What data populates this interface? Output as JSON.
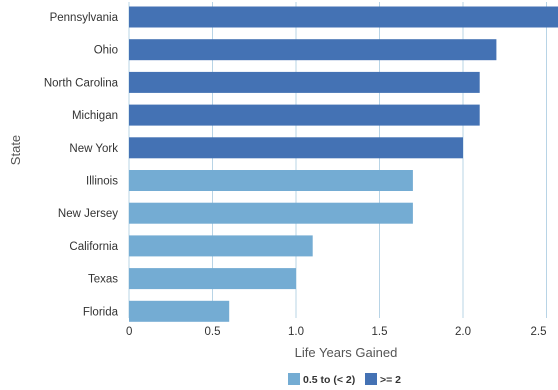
{
  "chart_data": {
    "type": "bar",
    "orientation": "horizontal",
    "categories": [
      "Pennsylvania",
      "Ohio",
      "North Carolina",
      "Michigan",
      "New York",
      "Illinois",
      "New Jersey",
      "California",
      "Texas",
      "Florida"
    ],
    "values": [
      2.6,
      2.2,
      2.1,
      2.1,
      2.0,
      1.7,
      1.7,
      1.1,
      1.0,
      0.6
    ],
    "groups": [
      "high",
      "high",
      "high",
      "high",
      "high",
      "low",
      "low",
      "low",
      "low",
      "low"
    ],
    "legend": [
      {
        "key": "low",
        "label": "0.5 to (< 2)",
        "color": "#74acd3"
      },
      {
        "key": "high",
        "label": ">= 2",
        "color": "#4472b4"
      }
    ],
    "xlabel": "Life Years Gained",
    "ylabel": "State",
    "xticks": [
      0,
      0.5,
      1.0,
      1.5,
      2.0,
      2.5
    ],
    "xtick_labels": [
      "0",
      "0.5",
      "1.0",
      "1.5",
      "2.0",
      "2.5"
    ],
    "xlim": [
      0,
      2.5
    ],
    "grid": "vertical",
    "grid_color": "#b8d4e6",
    "legend_position": "bottom"
  }
}
